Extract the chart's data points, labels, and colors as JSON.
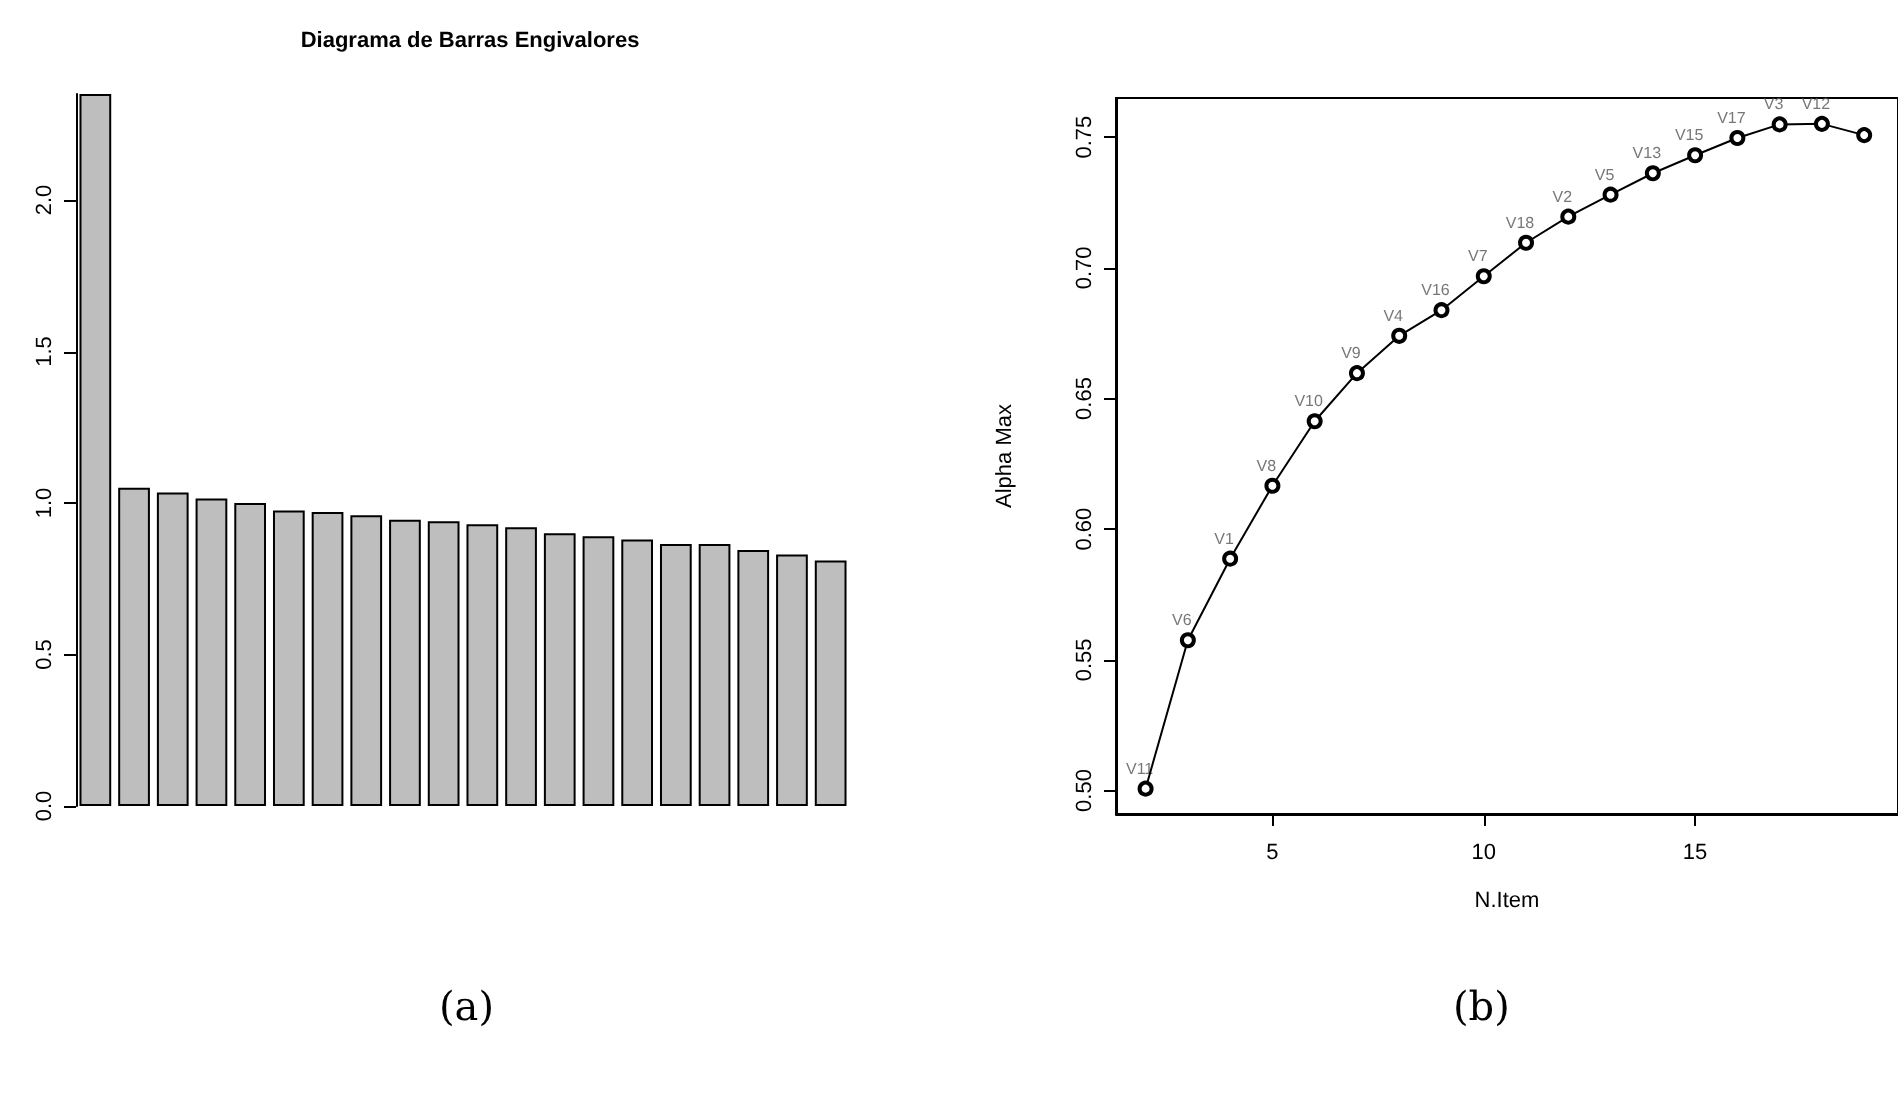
{
  "chart_data": [
    {
      "type": "bar",
      "title": "Diagrama de Barras Engivalores",
      "categories": [
        null,
        null,
        null,
        null,
        null,
        null,
        null,
        null,
        null,
        null,
        null,
        null,
        null,
        null,
        null,
        null,
        null,
        null,
        null,
        null
      ],
      "values": [
        2.35,
        1.05,
        1.035,
        1.015,
        1.0,
        0.975,
        0.97,
        0.96,
        0.945,
        0.94,
        0.93,
        0.92,
        0.9,
        0.89,
        0.88,
        0.865,
        0.865,
        0.845,
        0.83,
        0.81
      ],
      "color": "#bebebe",
      "ylim": [
        0,
        2.35
      ],
      "yticks": [
        {
          "value": 0,
          "label": "0.0"
        },
        {
          "value": 0.5,
          "label": "0.5"
        },
        {
          "value": 1,
          "label": "1.0"
        },
        {
          "value": 1.5,
          "label": "1.5"
        },
        {
          "value": 2,
          "label": "2.0"
        }
      ],
      "grid": false,
      "annotations": [
        "(a)"
      ]
    },
    {
      "type": "line",
      "xlabel": "N.Item",
      "ylabel": "Alpha Max",
      "x": [
        2,
        3,
        4,
        5,
        6,
        7,
        8,
        9,
        10,
        11,
        12,
        13,
        14,
        15,
        16,
        17,
        18,
        19
      ],
      "values": [
        0.5007,
        0.5575,
        0.5887,
        0.6166,
        0.6413,
        0.6597,
        0.674,
        0.6838,
        0.6968,
        0.7096,
        0.7196,
        0.728,
        0.7362,
        0.7431,
        0.7497,
        0.7549,
        0.7551,
        0.7508
      ],
      "color": "#000000",
      "marker": "circle",
      "line_style": "solid",
      "xlim": [
        1.3,
        19.8
      ],
      "xticks": [
        5,
        10,
        15
      ],
      "ylim": [
        0.491,
        0.765
      ],
      "yticks": [
        {
          "value": 0.5,
          "label": "0.50"
        },
        {
          "value": 0.55,
          "label": "0.55"
        },
        {
          "value": 0.6,
          "label": "0.60"
        },
        {
          "value": 0.65,
          "label": "0.65"
        },
        {
          "value": 0.7,
          "label": "0.70"
        },
        {
          "value": 0.75,
          "label": "0.75"
        }
      ],
      "grid": false,
      "annotations": [
        {
          "text": "V11",
          "x": 2,
          "y": 0.5007
        },
        {
          "text": "V6",
          "x": 3,
          "y": 0.5575
        },
        {
          "text": "V1",
          "x": 4,
          "y": 0.5887
        },
        {
          "text": "V8",
          "x": 5,
          "y": 0.6166
        },
        {
          "text": "V10",
          "x": 6,
          "y": 0.6413
        },
        {
          "text": "V9",
          "x": 7,
          "y": 0.6597
        },
        {
          "text": "V4",
          "x": 8,
          "y": 0.674
        },
        {
          "text": "V16",
          "x": 9,
          "y": 0.6838
        },
        {
          "text": "V7",
          "x": 10,
          "y": 0.6968
        },
        {
          "text": "V18",
          "x": 11,
          "y": 0.7096
        },
        {
          "text": "V2",
          "x": 12,
          "y": 0.7196
        },
        {
          "text": "V5",
          "x": 13,
          "y": 0.728
        },
        {
          "text": "V13",
          "x": 14,
          "y": 0.7362
        },
        {
          "text": "V15",
          "x": 15,
          "y": 0.7431
        },
        {
          "text": "V17",
          "x": 16,
          "y": 0.7497
        },
        {
          "text": "V3",
          "x": 17,
          "y": 0.7549
        },
        {
          "text": "V12",
          "x": 18,
          "y": 0.7551
        },
        "(b)"
      ]
    }
  ]
}
